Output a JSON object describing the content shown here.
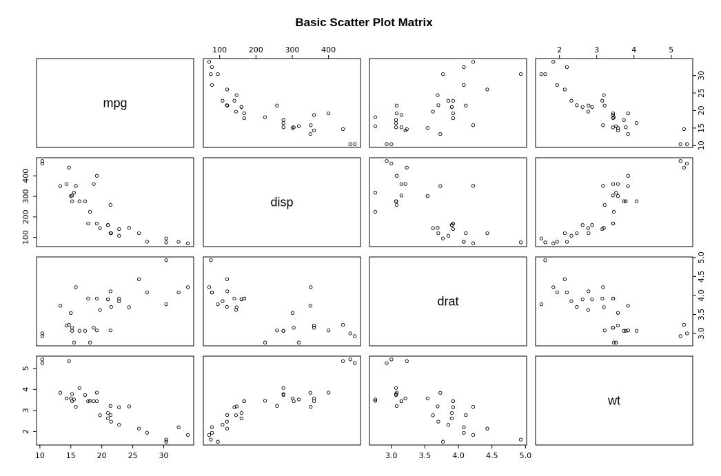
{
  "chart_data": {
    "type": "scatter",
    "title": "Basic Scatter Plot Matrix",
    "variables": [
      {
        "name": "mpg",
        "range": [
          10.4,
          33.9
        ],
        "ticks": [
          10,
          15,
          20,
          25,
          30
        ]
      },
      {
        "name": "disp",
        "range": [
          71.1,
          472
        ],
        "ticks": [
          100,
          200,
          300,
          400
        ]
      },
      {
        "name": "drat",
        "range": [
          2.76,
          4.93
        ],
        "ticks": [
          3.0,
          3.5,
          4.0,
          4.5,
          5.0
        ],
        "tick_labels": [
          "3.0",
          "3.5",
          "4.0",
          "4.5",
          "5.0"
        ]
      },
      {
        "name": "wt",
        "range": [
          1.513,
          5.424
        ],
        "ticks": [
          2,
          3,
          4,
          5
        ]
      }
    ],
    "points": {
      "mpg": [
        21.0,
        21.0,
        22.8,
        21.4,
        18.7,
        18.1,
        14.3,
        24.4,
        22.8,
        19.2,
        17.8,
        16.4,
        17.3,
        15.2,
        10.4,
        10.4,
        14.7,
        32.4,
        30.4,
        33.9,
        21.5,
        15.5,
        15.2,
        13.3,
        19.2,
        27.3,
        26.0,
        30.4,
        15.8,
        19.7,
        15.0,
        21.4
      ],
      "disp": [
        160,
        160,
        108,
        258,
        360,
        225,
        360,
        146.7,
        140.8,
        167.6,
        167.6,
        275.8,
        275.8,
        275.8,
        472,
        460,
        440,
        78.7,
        75.7,
        71.1,
        120.1,
        318,
        304,
        350,
        400,
        79,
        120.3,
        95.1,
        351,
        145,
        301,
        121
      ],
      "drat": [
        3.9,
        3.9,
        3.85,
        3.08,
        3.15,
        2.76,
        3.21,
        3.69,
        3.92,
        3.92,
        3.92,
        3.07,
        3.07,
        3.07,
        2.93,
        3.0,
        3.23,
        4.08,
        4.93,
        4.22,
        3.7,
        2.76,
        3.15,
        3.73,
        3.08,
        4.08,
        4.43,
        3.77,
        4.22,
        3.62,
        3.54,
        4.11
      ],
      "wt": [
        2.62,
        2.875,
        2.32,
        3.215,
        3.44,
        3.46,
        3.57,
        3.19,
        3.15,
        3.44,
        3.44,
        4.07,
        3.73,
        3.78,
        5.25,
        5.424,
        5.345,
        2.2,
        1.615,
        1.835,
        2.465,
        3.52,
        3.435,
        3.84,
        3.845,
        1.935,
        2.14,
        1.513,
        3.17,
        2.77,
        3.57,
        2.78
      ]
    },
    "layout": "4x4 pairs; variable names on diagonal; tick labels alternate top/bottom and left/right"
  }
}
